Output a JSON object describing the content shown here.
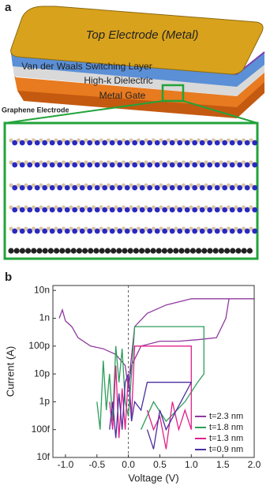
{
  "panel_a": {
    "label": "a",
    "top_electrode": "Top Electrode (Metal)",
    "switching_layer": "Van der Waals Switching Layer",
    "dielectric": "High-k Dielectric",
    "gate": "Metal Gate",
    "graphene": "Graphene Electrode"
  },
  "panel_b": {
    "label": "b"
  },
  "chart_data": {
    "type": "line",
    "x_label": "Voltage (V)",
    "y_label": "Current (A)",
    "log_y": true,
    "xlim": [
      -1.2,
      2.0
    ],
    "xticks": [
      {
        "value": -1,
        "label": "-1.0"
      },
      {
        "value": -0.5,
        "label": "-0.5"
      },
      {
        "value": 0,
        "label": "0.0"
      },
      {
        "value": 0.5,
        "label": "0.5"
      },
      {
        "value": 1,
        "label": "1.0"
      },
      {
        "value": 1.5,
        "label": "1.5"
      },
      {
        "value": 2,
        "label": "2.0"
      }
    ],
    "ylim": [
      1e-14,
      1.5e-08
    ],
    "yticks": [
      {
        "value": 1e-14,
        "label": "10f"
      },
      {
        "value": 1e-13,
        "label": "100f"
      },
      {
        "value": 1e-12,
        "label": "1p"
      },
      {
        "value": 1e-11,
        "label": "10p"
      },
      {
        "value": 1e-10,
        "label": "100p"
      },
      {
        "value": 1e-09,
        "label": "1n"
      },
      {
        "value": 1e-08,
        "label": "10n"
      }
    ],
    "legend": "lower right",
    "series": [
      {
        "name": "t=2.3 nm",
        "color": "#8e3a9e",
        "x": [
          -1.1,
          -1.05,
          -1.0,
          -0.9,
          -0.8,
          -0.6,
          -0.4,
          -0.2,
          -0.05,
          0,
          0.05,
          0.2,
          0.5,
          0.8,
          1.1,
          1.4,
          1.55,
          1.6,
          2.0,
          1.0,
          0.6,
          0.3,
          0.1,
          0.02
        ],
        "values": [
          1e-09,
          2e-09,
          8e-10,
          5e-10,
          2e-10,
          1e-10,
          8e-11,
          5e-11,
          2e-11,
          3e-12,
          2e-11,
          1e-10,
          1.5e-10,
          1.5e-10,
          1.7e-10,
          2e-10,
          1e-09,
          5e-09,
          5e-09,
          5e-09,
          3e-09,
          1.5e-09,
          5e-10,
          1e-11
        ]
      },
      {
        "name": "t=1.8 nm",
        "color": "#2e9e5a",
        "x": [
          -0.5,
          -0.45,
          -0.4,
          -0.35,
          -0.3,
          -0.25,
          -0.2,
          -0.15,
          -0.1,
          -0.05,
          0,
          0.05,
          0.1,
          0.3,
          0.6,
          0.9,
          1.15,
          1.2,
          1.2,
          1.1,
          0.9,
          0.6,
          0.4,
          0.2
        ],
        "values": [
          1e-12,
          1e-13,
          3e-11,
          5e-13,
          1e-11,
          2e-13,
          1e-10,
          5e-12,
          8e-11,
          1e-12,
          3e-13,
          1e-11,
          5e-10,
          5e-10,
          5e-10,
          5e-10,
          5e-10,
          5e-10,
          1e-11,
          5e-12,
          1e-12,
          2e-13,
          1e-12,
          1e-13
        ]
      },
      {
        "name": "t=1.3 nm",
        "color": "#e0208a",
        "x": [
          -0.3,
          -0.25,
          -0.2,
          -0.15,
          -0.1,
          -0.05,
          0,
          0.05,
          0.1,
          0.4,
          0.7,
          1.0,
          1.0,
          0.9,
          0.8,
          0.7,
          0.6,
          0.5,
          0.4,
          0.3
        ],
        "values": [
          1e-12,
          1e-13,
          2e-11,
          5e-14,
          3e-12,
          1e-13,
          1e-11,
          3e-13,
          1e-10,
          1e-10,
          1e-10,
          1e-10,
          1e-13,
          5e-13,
          1e-13,
          1e-12,
          2e-14,
          3e-13,
          1e-13,
          5e-13
        ]
      },
      {
        "name": "t=0.9 nm",
        "color": "#4b2ea0",
        "x": [
          -0.3,
          -0.25,
          -0.2,
          -0.15,
          -0.1,
          -0.05,
          0,
          0.05,
          0.1,
          0.2,
          0.3,
          0.6,
          1.0,
          0.6,
          0.5,
          0.4,
          0.3
        ],
        "values": [
          1e-13,
          1e-12,
          5e-14,
          2e-12,
          1e-13,
          5e-12,
          1e-11,
          2e-13,
          1e-12,
          5e-13,
          5e-12,
          5e-12,
          5e-12,
          1e-13,
          5e-13,
          2e-14,
          1e-13
        ]
      }
    ]
  }
}
